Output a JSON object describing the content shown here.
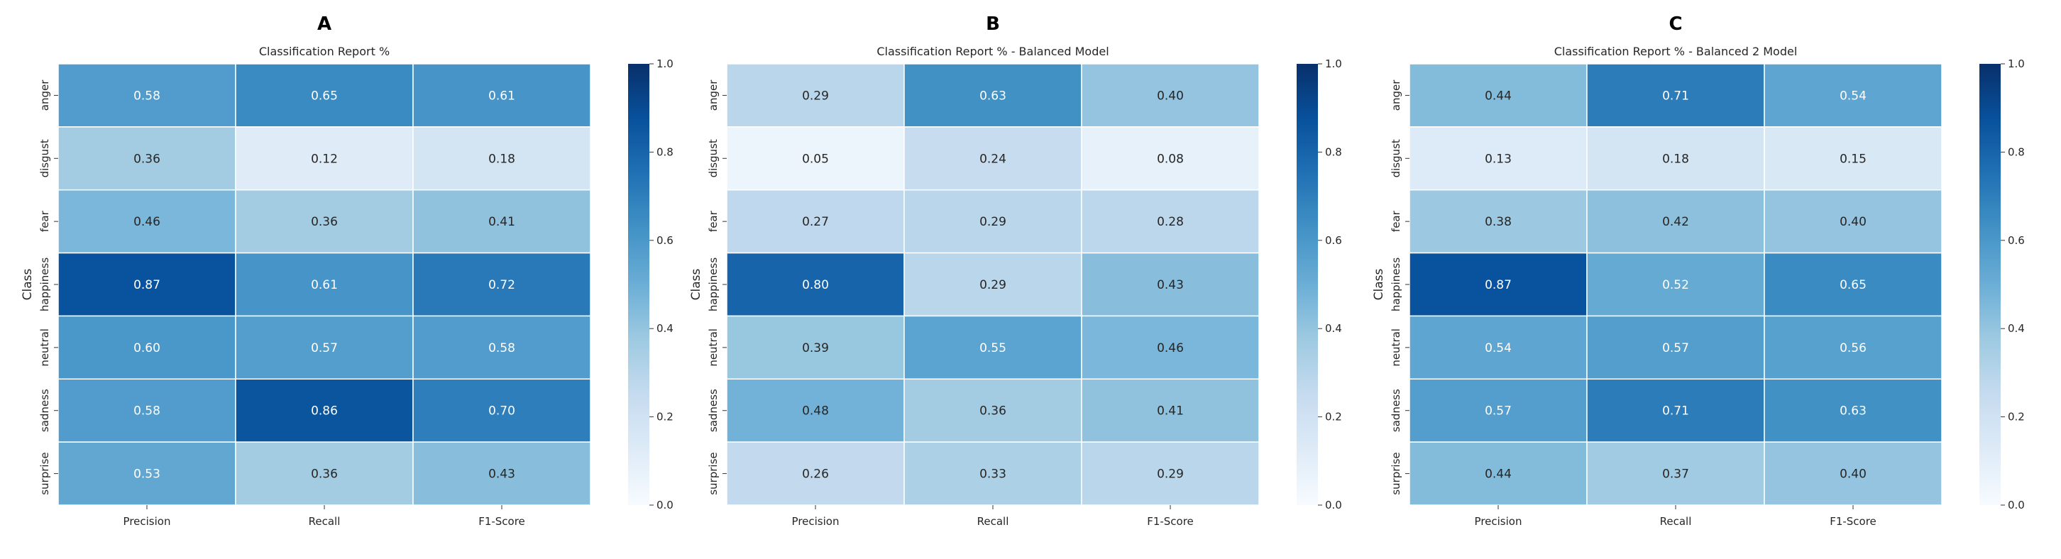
{
  "colormap": {
    "name": "Blues",
    "stops": [
      "#f7fbff",
      "#deebf7",
      "#c6dbef",
      "#9ecae1",
      "#6baed6",
      "#4292c6",
      "#2171b5",
      "#08519c",
      "#08306b"
    ],
    "vmin": 0.0,
    "vmax": 1.0,
    "ticks": [
      "0.0",
      "0.2",
      "0.4",
      "0.6",
      "0.8",
      "1.0"
    ]
  },
  "chart_data": [
    {
      "type": "heatmap",
      "panel_label": "A",
      "title": "Classification Report %",
      "ylabel": "Class",
      "xlabel": "",
      "columns": [
        "Precision",
        "Recall",
        "F1-Score"
      ],
      "rows": [
        "anger",
        "disgust",
        "fear",
        "happiness",
        "neutral",
        "sadness",
        "surprise"
      ],
      "values": [
        [
          0.58,
          0.65,
          0.61
        ],
        [
          0.36,
          0.12,
          0.18
        ],
        [
          0.46,
          0.36,
          0.41
        ],
        [
          0.87,
          0.61,
          0.72
        ],
        [
          0.6,
          0.57,
          0.58
        ],
        [
          0.58,
          0.86,
          0.7
        ],
        [
          0.53,
          0.36,
          0.43
        ]
      ]
    },
    {
      "type": "heatmap",
      "panel_label": "B",
      "title": "Classification Report % - Balanced Model",
      "ylabel": "Class",
      "xlabel": "",
      "columns": [
        "Precision",
        "Recall",
        "F1-Score"
      ],
      "rows": [
        "anger",
        "disgust",
        "fear",
        "happiness",
        "neutral",
        "sadness",
        "surprise"
      ],
      "values": [
        [
          0.29,
          0.63,
          0.4
        ],
        [
          0.05,
          0.24,
          0.08
        ],
        [
          0.27,
          0.29,
          0.28
        ],
        [
          0.8,
          0.29,
          0.43
        ],
        [
          0.39,
          0.55,
          0.46
        ],
        [
          0.48,
          0.36,
          0.41
        ],
        [
          0.26,
          0.33,
          0.29
        ]
      ]
    },
    {
      "type": "heatmap",
      "panel_label": "C",
      "title": "Classification Report % - Balanced 2 Model",
      "ylabel": "Class",
      "xlabel": "",
      "columns": [
        "Precision",
        "Recall",
        "F1-Score"
      ],
      "rows": [
        "anger",
        "disgust",
        "fear",
        "happiness",
        "neutral",
        "sadness",
        "surprise"
      ],
      "values": [
        [
          0.44,
          0.71,
          0.54
        ],
        [
          0.13,
          0.18,
          0.15
        ],
        [
          0.38,
          0.42,
          0.4
        ],
        [
          0.87,
          0.52,
          0.65
        ],
        [
          0.54,
          0.57,
          0.56
        ],
        [
          0.57,
          0.71,
          0.63
        ],
        [
          0.44,
          0.37,
          0.4
        ]
      ]
    }
  ]
}
